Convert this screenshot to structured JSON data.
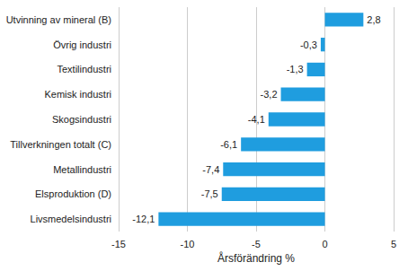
{
  "chart_data": {
    "type": "bar",
    "orientation": "horizontal",
    "categories": [
      "Utvinning av mineral (B)",
      "Övrig industri",
      "Textilindustri",
      "Kemisk industri",
      "Skogsindustri",
      "Tillverkningen totalt (C)",
      "Metallindustri",
      "Elsproduktion (D)",
      "Livsmedelsindustri"
    ],
    "values": [
      2.8,
      -0.3,
      -1.3,
      -3.2,
      -4.1,
      -6.1,
      -7.4,
      -7.5,
      -12.1
    ],
    "value_labels": [
      "2,8",
      "-0,3",
      "-1,3",
      "-3,2",
      "-4,1",
      "-6,1",
      "-7,4",
      "-7,5",
      "-12,1"
    ],
    "x_label": "Årsförändring %",
    "color": "#1f9ddf",
    "xlim": [
      -15,
      5
    ],
    "xticks": [
      -15,
      -10,
      -5,
      0,
      5
    ],
    "grid": true,
    "data_labels": true
  }
}
